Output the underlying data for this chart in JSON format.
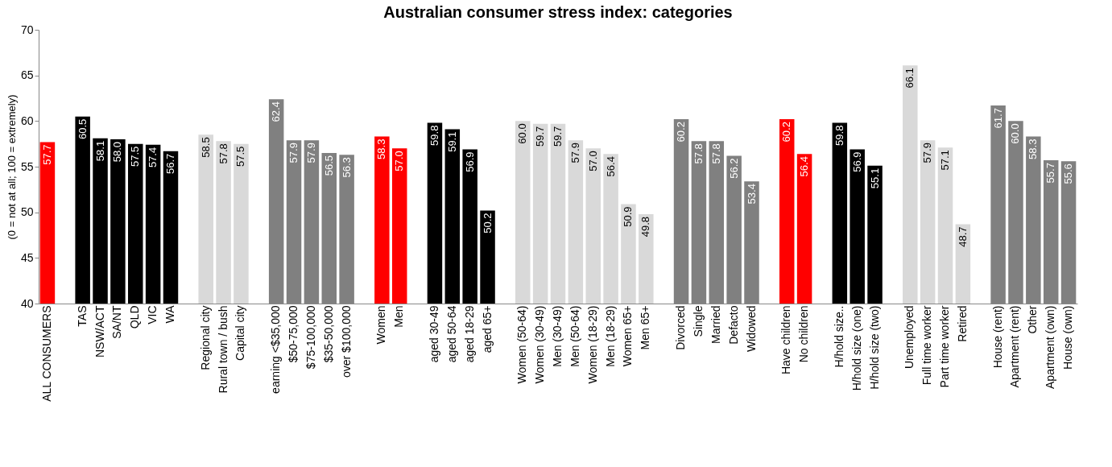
{
  "chart_data": {
    "type": "bar",
    "title": "Australian consumer stress index: categories",
    "ylabel": "(0 = not at all; 100 = extremely)",
    "categories": [
      "ALL CONSUMERS",
      null,
      "TAS",
      "NSW/ACT",
      "SA/NT",
      "QLD",
      "VIC",
      "WA",
      null,
      "Regional city",
      "Rural town / bush",
      "Capital city",
      null,
      "earning <$35,000",
      "$50-75,000",
      "$75-100,000",
      "$35-50,000",
      "over $100,000",
      null,
      "Women",
      "Men",
      null,
      "aged 30-49",
      "aged 50-64",
      "aged 18-29",
      "aged 65+",
      null,
      "Women (50-64)",
      "Women (30-49)",
      "Men (30-49)",
      "Men (50-64)",
      "Women (18-29)",
      "Men (18-29)",
      "Women 65+",
      "Men 65+",
      null,
      "Divorced",
      "Single",
      "Married",
      "Defacto",
      "Widowed",
      null,
      "Have children",
      "No children",
      null,
      "H/hold size..",
      "H/hold size (one)",
      "H/hold size (two)",
      null,
      "Unemployed",
      "Full time worker",
      "Part time worker",
      "Retired",
      null,
      "House (rent)",
      "Apartment (rent)",
      "Other",
      "Apartment (own)",
      "House (own)"
    ],
    "values": [
      57.7,
      null,
      60.5,
      58.1,
      58.0,
      57.5,
      57.4,
      56.7,
      null,
      58.5,
      57.8,
      57.5,
      null,
      62.4,
      57.9,
      57.9,
      56.5,
      56.3,
      null,
      58.3,
      57.0,
      null,
      59.8,
      59.1,
      56.9,
      50.2,
      null,
      60.0,
      59.7,
      59.7,
      57.9,
      57.0,
      56.4,
      50.9,
      49.8,
      null,
      60.2,
      57.8,
      57.8,
      56.2,
      53.4,
      null,
      60.2,
      56.4,
      null,
      59.8,
      56.9,
      55.1,
      null,
      66.1,
      57.9,
      57.1,
      48.7,
      null,
      61.7,
      60.0,
      58.3,
      55.7,
      55.6
    ],
    "colors": [
      "#ff0000",
      null,
      "#000000",
      "#000000",
      "#000000",
      "#000000",
      "#000000",
      "#000000",
      null,
      "#d9d9d9",
      "#d9d9d9",
      "#d9d9d9",
      null,
      "#808080",
      "#808080",
      "#808080",
      "#808080",
      "#808080",
      null,
      "#ff0000",
      "#ff0000",
      null,
      "#000000",
      "#000000",
      "#000000",
      "#000000",
      null,
      "#d9d9d9",
      "#d9d9d9",
      "#d9d9d9",
      "#d9d9d9",
      "#d9d9d9",
      "#d9d9d9",
      "#d9d9d9",
      "#d9d9d9",
      null,
      "#808080",
      "#808080",
      "#808080",
      "#808080",
      "#808080",
      null,
      "#ff0000",
      "#ff0000",
      null,
      "#000000",
      "#000000",
      "#000000",
      null,
      "#d9d9d9",
      "#d9d9d9",
      "#d9d9d9",
      "#d9d9d9",
      null,
      "#808080",
      "#808080",
      "#808080",
      "#808080",
      "#808080"
    ],
    "value_labels": [
      "57.7",
      null,
      "60.5",
      "58.1",
      "58.0",
      "57.5",
      "57.4",
      "56.7",
      null,
      "58.5",
      "57.8",
      "57.5",
      null,
      "62.4",
      "57.9",
      "57.9",
      "56.5",
      "56.3",
      null,
      "58.3",
      "57.0",
      null,
      "59.8",
      "59.1",
      "56.9",
      "50.2",
      null,
      "60.0",
      "59.7",
      "59.7",
      "57.9",
      "57.0",
      "56.4",
      "50.9",
      "49.8",
      null,
      "60.2",
      "57.8",
      "57.8",
      "56.2",
      "53.4",
      null,
      "60.2",
      "56.4",
      null,
      "59.8",
      "56.9",
      "55.1",
      null,
      "66.1",
      "57.9",
      "57.1",
      "48.7",
      null,
      "61.7",
      "60.0",
      "58.3",
      "55.7",
      "55.6"
    ],
    "ylim": [
      40,
      70
    ],
    "yticks": [
      40,
      45,
      50,
      55,
      60,
      65,
      70
    ]
  }
}
